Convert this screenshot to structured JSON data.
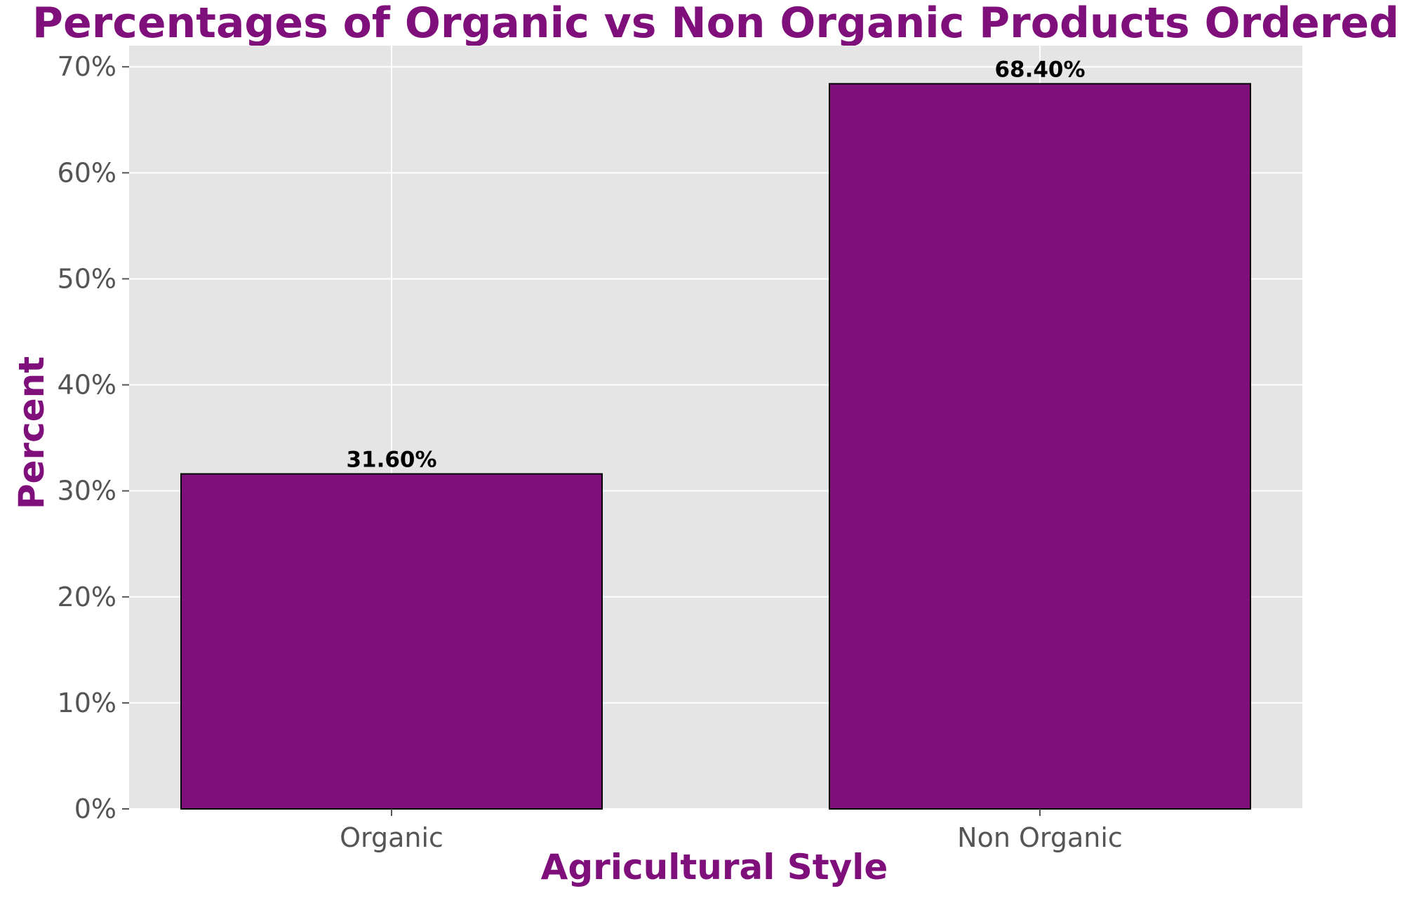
{
  "chart_data": {
    "type": "bar",
    "title": "Percentages of Organic vs Non Organic Products Ordered",
    "xlabel": "Agricultural Style",
    "ylabel": "Percent",
    "categories": [
      "Organic",
      "Non Organic"
    ],
    "values": [
      31.6,
      68.4
    ],
    "data_labels": [
      "31.60%",
      "68.40%"
    ],
    "ylim": [
      0,
      72
    ],
    "yticks": [
      0,
      10,
      20,
      30,
      40,
      50,
      60,
      70
    ],
    "ytick_labels": [
      "0%",
      "10%",
      "20%",
      "30%",
      "40%",
      "50%",
      "60%",
      "70%"
    ],
    "grid": true,
    "colors": {
      "bar_fill": "#7f0f7a",
      "bar_edge": "#000000",
      "title": "#7f0f7a",
      "axis_labels": "#7f0f7a",
      "plot_background": "#e5e5e5",
      "grid": "#ffffff"
    }
  }
}
